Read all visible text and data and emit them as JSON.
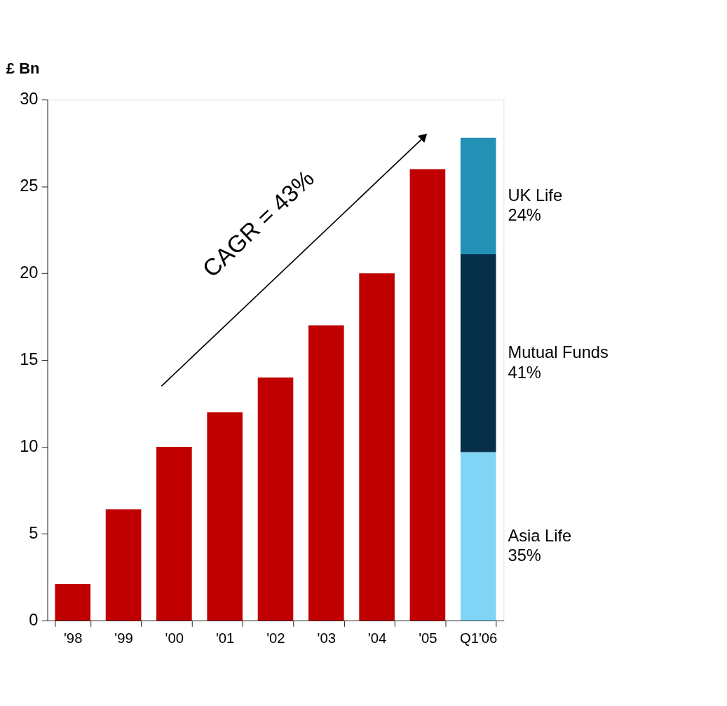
{
  "chart_data": {
    "type": "bar",
    "ylabel": "£ Bn",
    "categories": [
      "'98",
      "'99",
      "'00",
      "'01",
      "'02",
      "'03",
      "'04",
      "'05",
      "Q1'06"
    ],
    "stacked": true,
    "series": [
      {
        "color": "#c00000",
        "values": [
          2.1,
          6.4,
          10,
          12,
          14,
          17,
          20,
          26,
          null
        ]
      },
      {
        "name": "Asia Life 35%",
        "color": "#80d4f6",
        "values": [
          null,
          null,
          null,
          null,
          null,
          null,
          null,
          null,
          9.7
        ]
      },
      {
        "name": "Mutual Funds 41%",
        "color": "#06304a",
        "values": [
          null,
          null,
          null,
          null,
          null,
          null,
          null,
          null,
          11.4
        ]
      },
      {
        "name": "UK Life 24%",
        "color": "#2390b6",
        "values": [
          null,
          null,
          null,
          null,
          null,
          null,
          null,
          null,
          6.7
        ]
      }
    ],
    "annotations": [
      "CAGR = 43%"
    ],
    "ylim": [
      0,
      30
    ],
    "yticks": [
      0,
      5,
      10,
      15,
      20,
      25,
      30
    ],
    "grid": false,
    "legend": false
  }
}
